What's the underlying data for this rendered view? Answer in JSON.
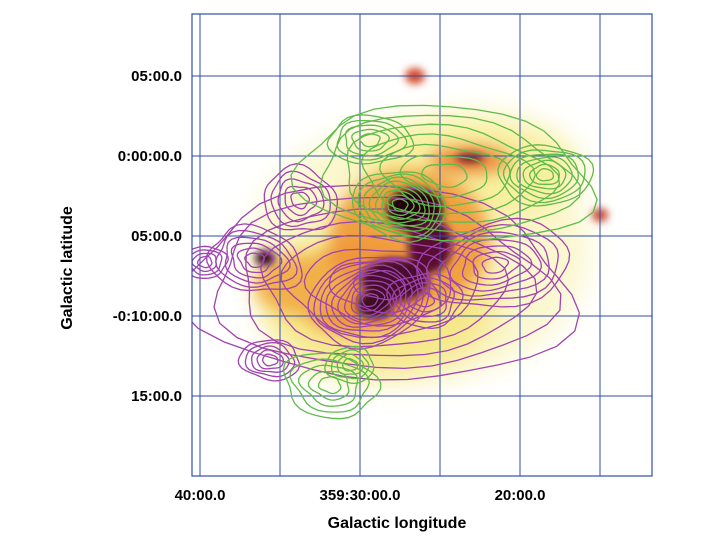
{
  "chart_data": {
    "type": "heatmap",
    "title": "",
    "xlabel": "Galactic longitude",
    "ylabel": "Galactic latitude",
    "x_ticks": [
      "40:00.0",
      "359:30:00.0",
      "20:00.0"
    ],
    "y_ticks": [
      "05:00.0",
      "0:00:00.0",
      "05:00.0",
      "-0:10:00.0",
      "15:00.0"
    ],
    "xlim": [
      "359:40:00",
      "359:12:00"
    ],
    "ylim": [
      "-0:20:00",
      "0:09:00"
    ],
    "grid": true,
    "colors": {
      "grid": "#2f4fa8",
      "contour_purple": "#a043b0",
      "contour_green": "#5fbb4a",
      "heat_low": "#fbf6c0",
      "heat_mid": "#ef8a2e",
      "heat_high": "#2a0612"
    },
    "layers": [
      {
        "kind": "image",
        "colormap": "yellow-orange-purple-black"
      },
      {
        "kind": "contours",
        "color": "purple"
      },
      {
        "kind": "contours",
        "color": "green"
      }
    ]
  }
}
